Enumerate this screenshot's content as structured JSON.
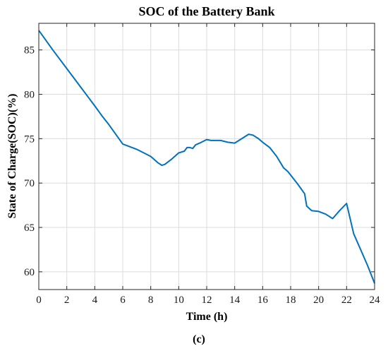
{
  "chart_data": {
    "type": "line",
    "title": "SOC of the Battery Bank",
    "xlabel": "Time (h)",
    "ylabel": "State of Charge(SOC)(%)",
    "caption": "(c)",
    "xlim": [
      0,
      24
    ],
    "ylim": [
      58,
      88
    ],
    "xticks": [
      0,
      2,
      4,
      6,
      8,
      10,
      12,
      14,
      16,
      18,
      20,
      22,
      24
    ],
    "yticks": [
      60,
      65,
      70,
      75,
      80,
      85
    ],
    "grid": true,
    "line_color": "#0072BD",
    "series": [
      {
        "x": [
          0,
          1,
          2,
          3,
          4,
          4.5,
          5,
          6,
          7,
          8,
          8.5,
          8.8,
          9,
          9.5,
          10,
          10.4,
          10.6,
          10.8,
          11,
          11.2,
          11.5,
          12,
          12.3,
          12.6,
          13,
          13.5,
          14,
          14.5,
          15,
          15.3,
          15.7,
          16,
          16.5,
          17,
          17.5,
          17.8,
          18,
          18.5,
          19,
          19.15,
          19.5,
          20,
          20.5,
          21,
          21.5,
          22,
          22.5,
          23,
          23.5,
          24
        ],
        "y": [
          87.2,
          85.0,
          82.9,
          80.8,
          78.7,
          77.6,
          76.6,
          74.4,
          73.8,
          73.0,
          72.3,
          72.0,
          72.1,
          72.7,
          73.4,
          73.6,
          74.0,
          74.0,
          73.9,
          74.3,
          74.5,
          74.9,
          74.8,
          74.8,
          74.8,
          74.6,
          74.5,
          75.0,
          75.5,
          75.4,
          75.0,
          74.6,
          74.0,
          73.0,
          71.7,
          71.3,
          70.9,
          69.9,
          68.8,
          67.4,
          66.9,
          66.8,
          66.5,
          66.0,
          66.9,
          67.7,
          64.3,
          62.5,
          60.7,
          58.7
        ]
      }
    ]
  }
}
